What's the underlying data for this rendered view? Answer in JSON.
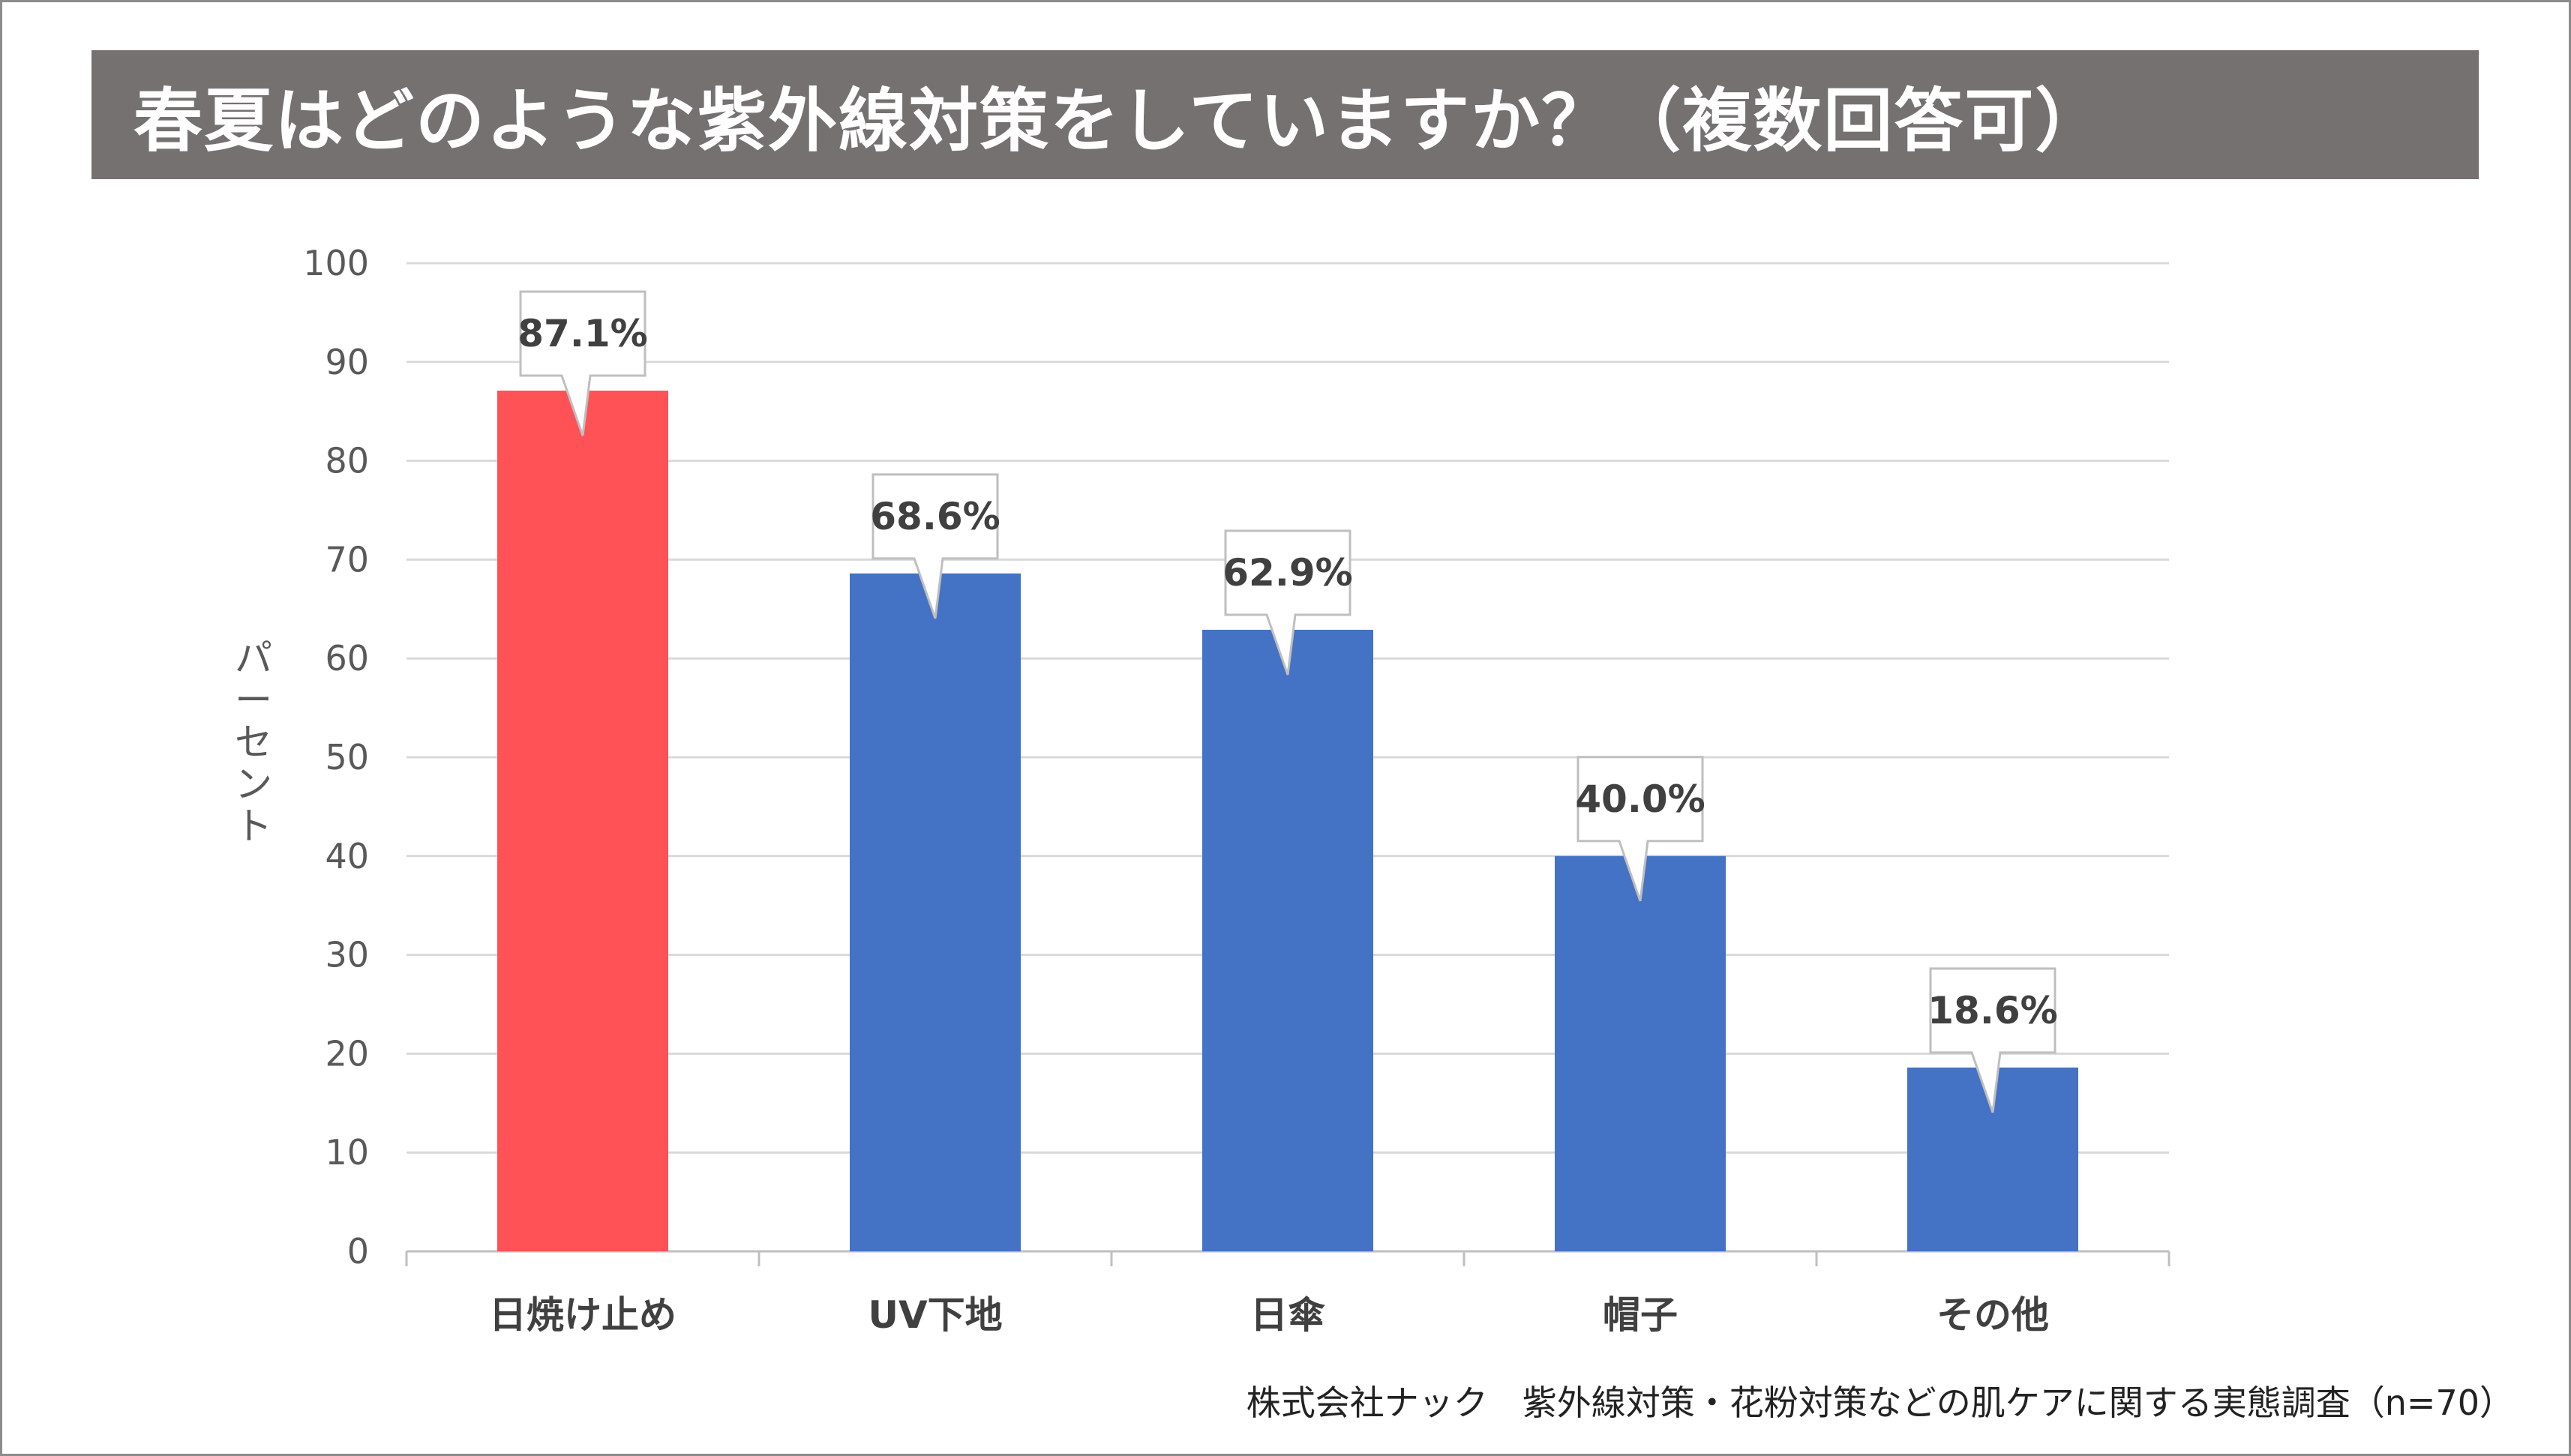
{
  "title": "春夏はどのような紫外線対策をしていますか？（複数回答可）",
  "footnote": "株式会社ナック　紫外線対策・花粉対策などの肌ケアに関する実態調査（n=70）",
  "colors": {
    "title_bg": "#767171",
    "highlight_bar": "#FF5257",
    "bar": "#4472C4",
    "grid": "#d9d9d9",
    "axis_text": "#595959"
  },
  "chart_data": {
    "type": "bar",
    "categories": [
      "日焼け止め",
      "UV下地",
      "日傘",
      "帽子",
      "その他"
    ],
    "values": [
      87.1,
      68.6,
      62.9,
      40.0,
      18.6
    ],
    "data_labels": [
      "87.1%",
      "68.6%",
      "62.9%",
      "40.0%",
      "18.6%"
    ],
    "highlight_index": 0,
    "ylabel": "パーセント",
    "ylim": [
      0,
      100
    ],
    "yticks": [
      "0",
      "10",
      "20",
      "30",
      "40",
      "50",
      "60",
      "70",
      "80",
      "90",
      "100"
    ],
    "grid": true,
    "legend": "none"
  }
}
